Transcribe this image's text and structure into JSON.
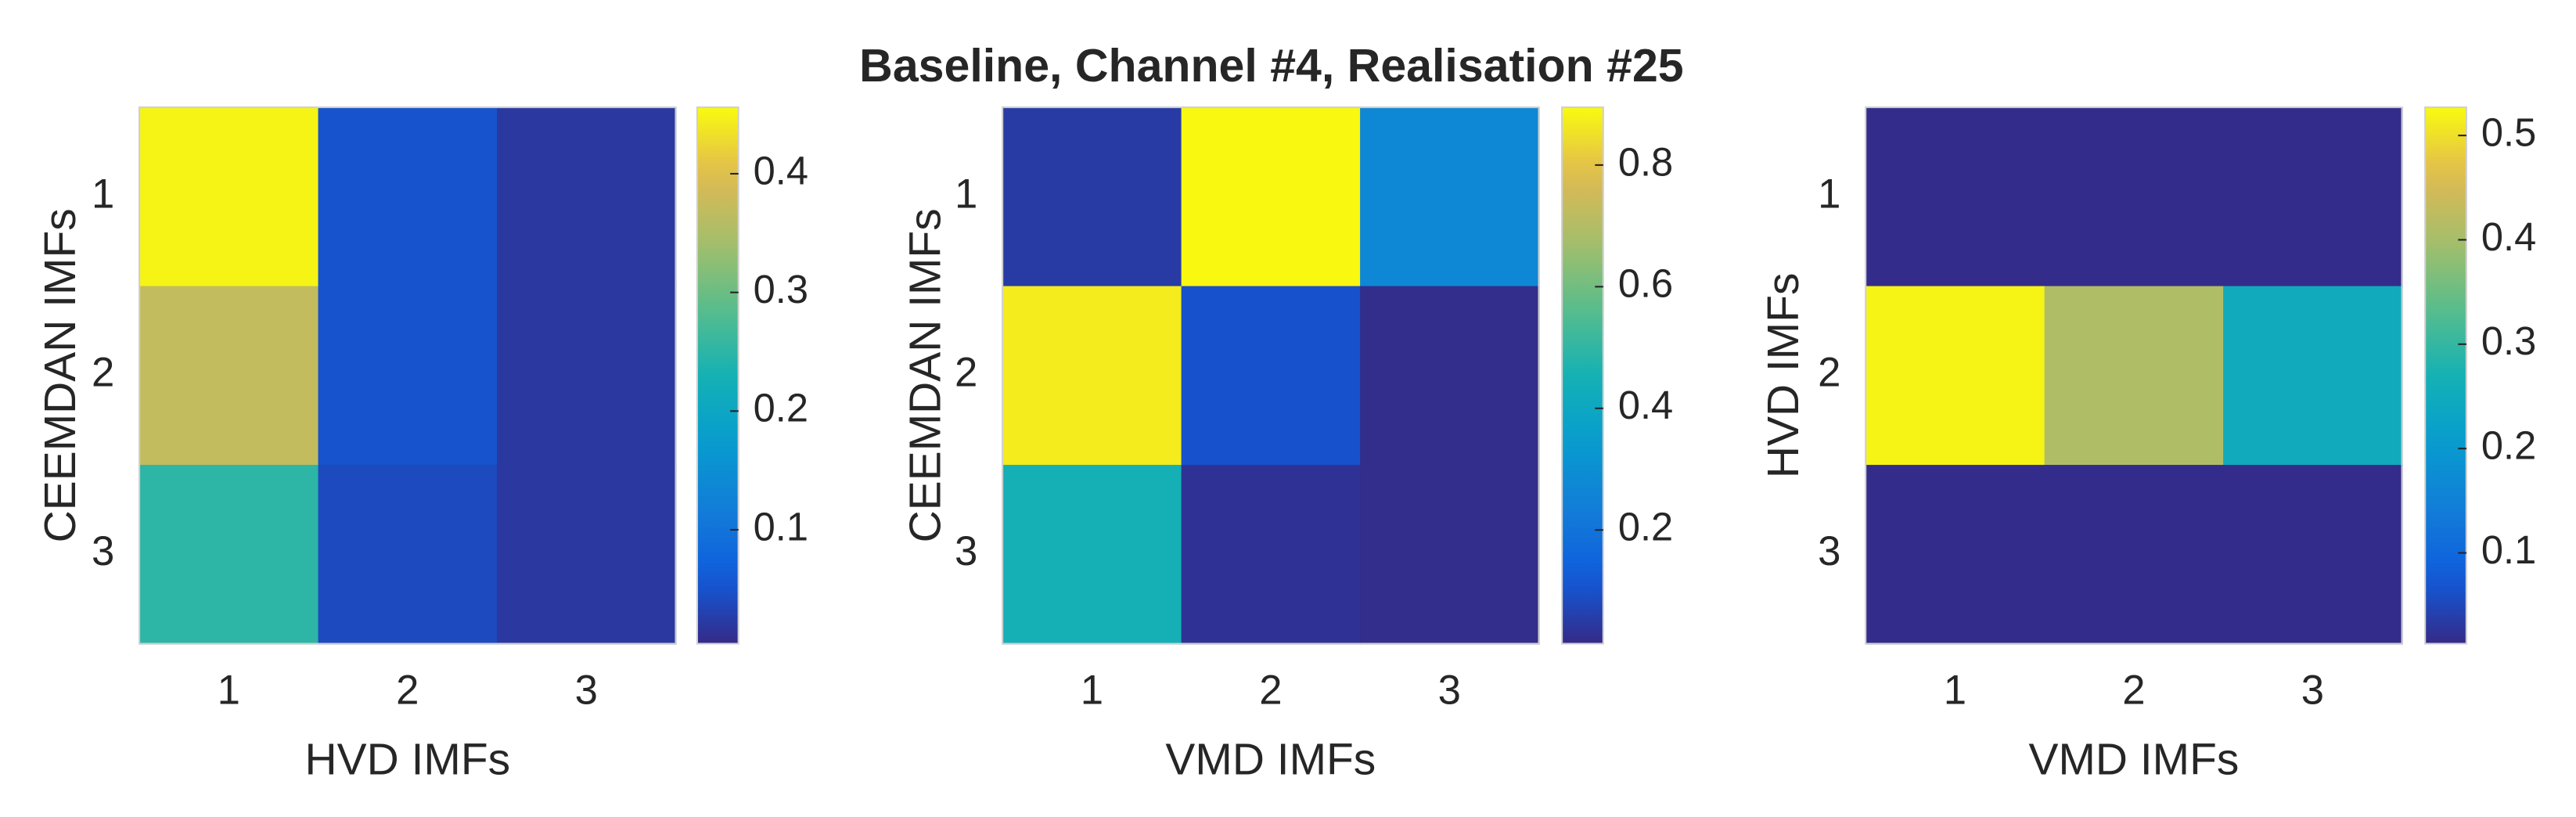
{
  "title": "Baseline, Channel #4, Realisation #25",
  "chart_data": [
    {
      "type": "heatmap",
      "colormap": "parula",
      "x_label": "HVD IMFs",
      "y_label": "CEEMDAN IMFs",
      "x": [
        1,
        2,
        3
      ],
      "y": [
        1,
        2,
        3
      ],
      "values": [
        [
          0.45,
          0.05,
          0.02
        ],
        [
          0.37,
          0.05,
          0.02
        ],
        [
          0.25,
          0.04,
          0.02
        ]
      ],
      "clim": [
        0.004,
        0.456
      ],
      "cticks": [
        0.1,
        0.2,
        0.3,
        0.4
      ]
    },
    {
      "type": "heatmap",
      "colormap": "parula",
      "x_label": "VMD IMFs",
      "y_label": "CEEMDAN IMFs",
      "x": [
        1,
        2,
        3
      ],
      "y": [
        1,
        2,
        3
      ],
      "values": [
        [
          0.05,
          0.89,
          0.27
        ],
        [
          0.87,
          0.1,
          0.02
        ],
        [
          0.45,
          0.03,
          0.02
        ]
      ],
      "clim": [
        0.013,
        0.895
      ],
      "cticks": [
        0.2,
        0.4,
        0.6,
        0.8
      ]
    },
    {
      "type": "heatmap",
      "colormap": "parula",
      "x_label": "VMD IMFs",
      "y_label": "HVD IMFs",
      "x": [
        1,
        2,
        3
      ],
      "y": [
        1,
        2,
        3
      ],
      "values": [
        [
          0.015,
          0.015,
          0.015
        ],
        [
          0.52,
          0.41,
          0.25
        ],
        [
          0.015,
          0.015,
          0.015
        ]
      ],
      "clim": [
        0.013,
        0.527
      ],
      "cticks": [
        0.1,
        0.2,
        0.3,
        0.4,
        0.5
      ]
    }
  ]
}
